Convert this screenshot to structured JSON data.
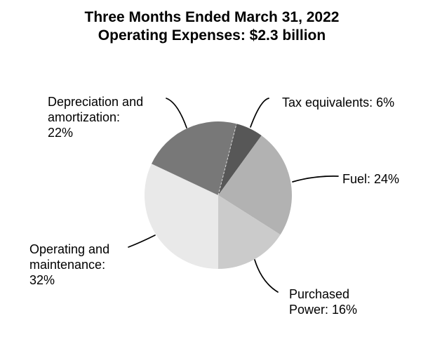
{
  "title": {
    "line1": "Three Months Ended March 31, 2022",
    "line2": "Operating Expenses: $2.3 billion"
  },
  "labels": {
    "depreciation": {
      "line1": "Depreciation and",
      "line2": "amortization:",
      "line3": "22%"
    },
    "tax": {
      "line1": "Tax equivalents: 6%"
    },
    "fuel": {
      "line1": "Fuel: 24%"
    },
    "operating": {
      "line1": "Operating and",
      "line2": "maintenance:",
      "line3": "32%"
    },
    "purchased": {
      "line1": "Purchased",
      "line2": "Power: 16%"
    }
  },
  "chart_data": {
    "type": "pie",
    "title": "Three Months Ended March 31, 2022",
    "subtitle": "Operating Expenses: $2.3 billion",
    "slices": [
      {
        "label": "Tax equivalents",
        "value": 6,
        "color": "#575757"
      },
      {
        "label": "Fuel",
        "value": 24,
        "color": "#b2b2b2"
      },
      {
        "label": "Purchased Power",
        "value": 16,
        "color": "#cbcbcb"
      },
      {
        "label": "Operating and maintenance",
        "value": 32,
        "color": "#e9e9e9"
      },
      {
        "label": "Depreciation and amortization",
        "value": 22,
        "color": "#787878"
      }
    ],
    "unit": "percent",
    "values_sum": 100,
    "start_angle_clockwise_from_top_deg": 14.4,
    "direction": "clockwise",
    "legend_position": "none",
    "label_style": "outside labels with curved leader lines"
  },
  "colors": {
    "background": "#ffffff",
    "text": "#000000",
    "leader_line": "#000000"
  }
}
